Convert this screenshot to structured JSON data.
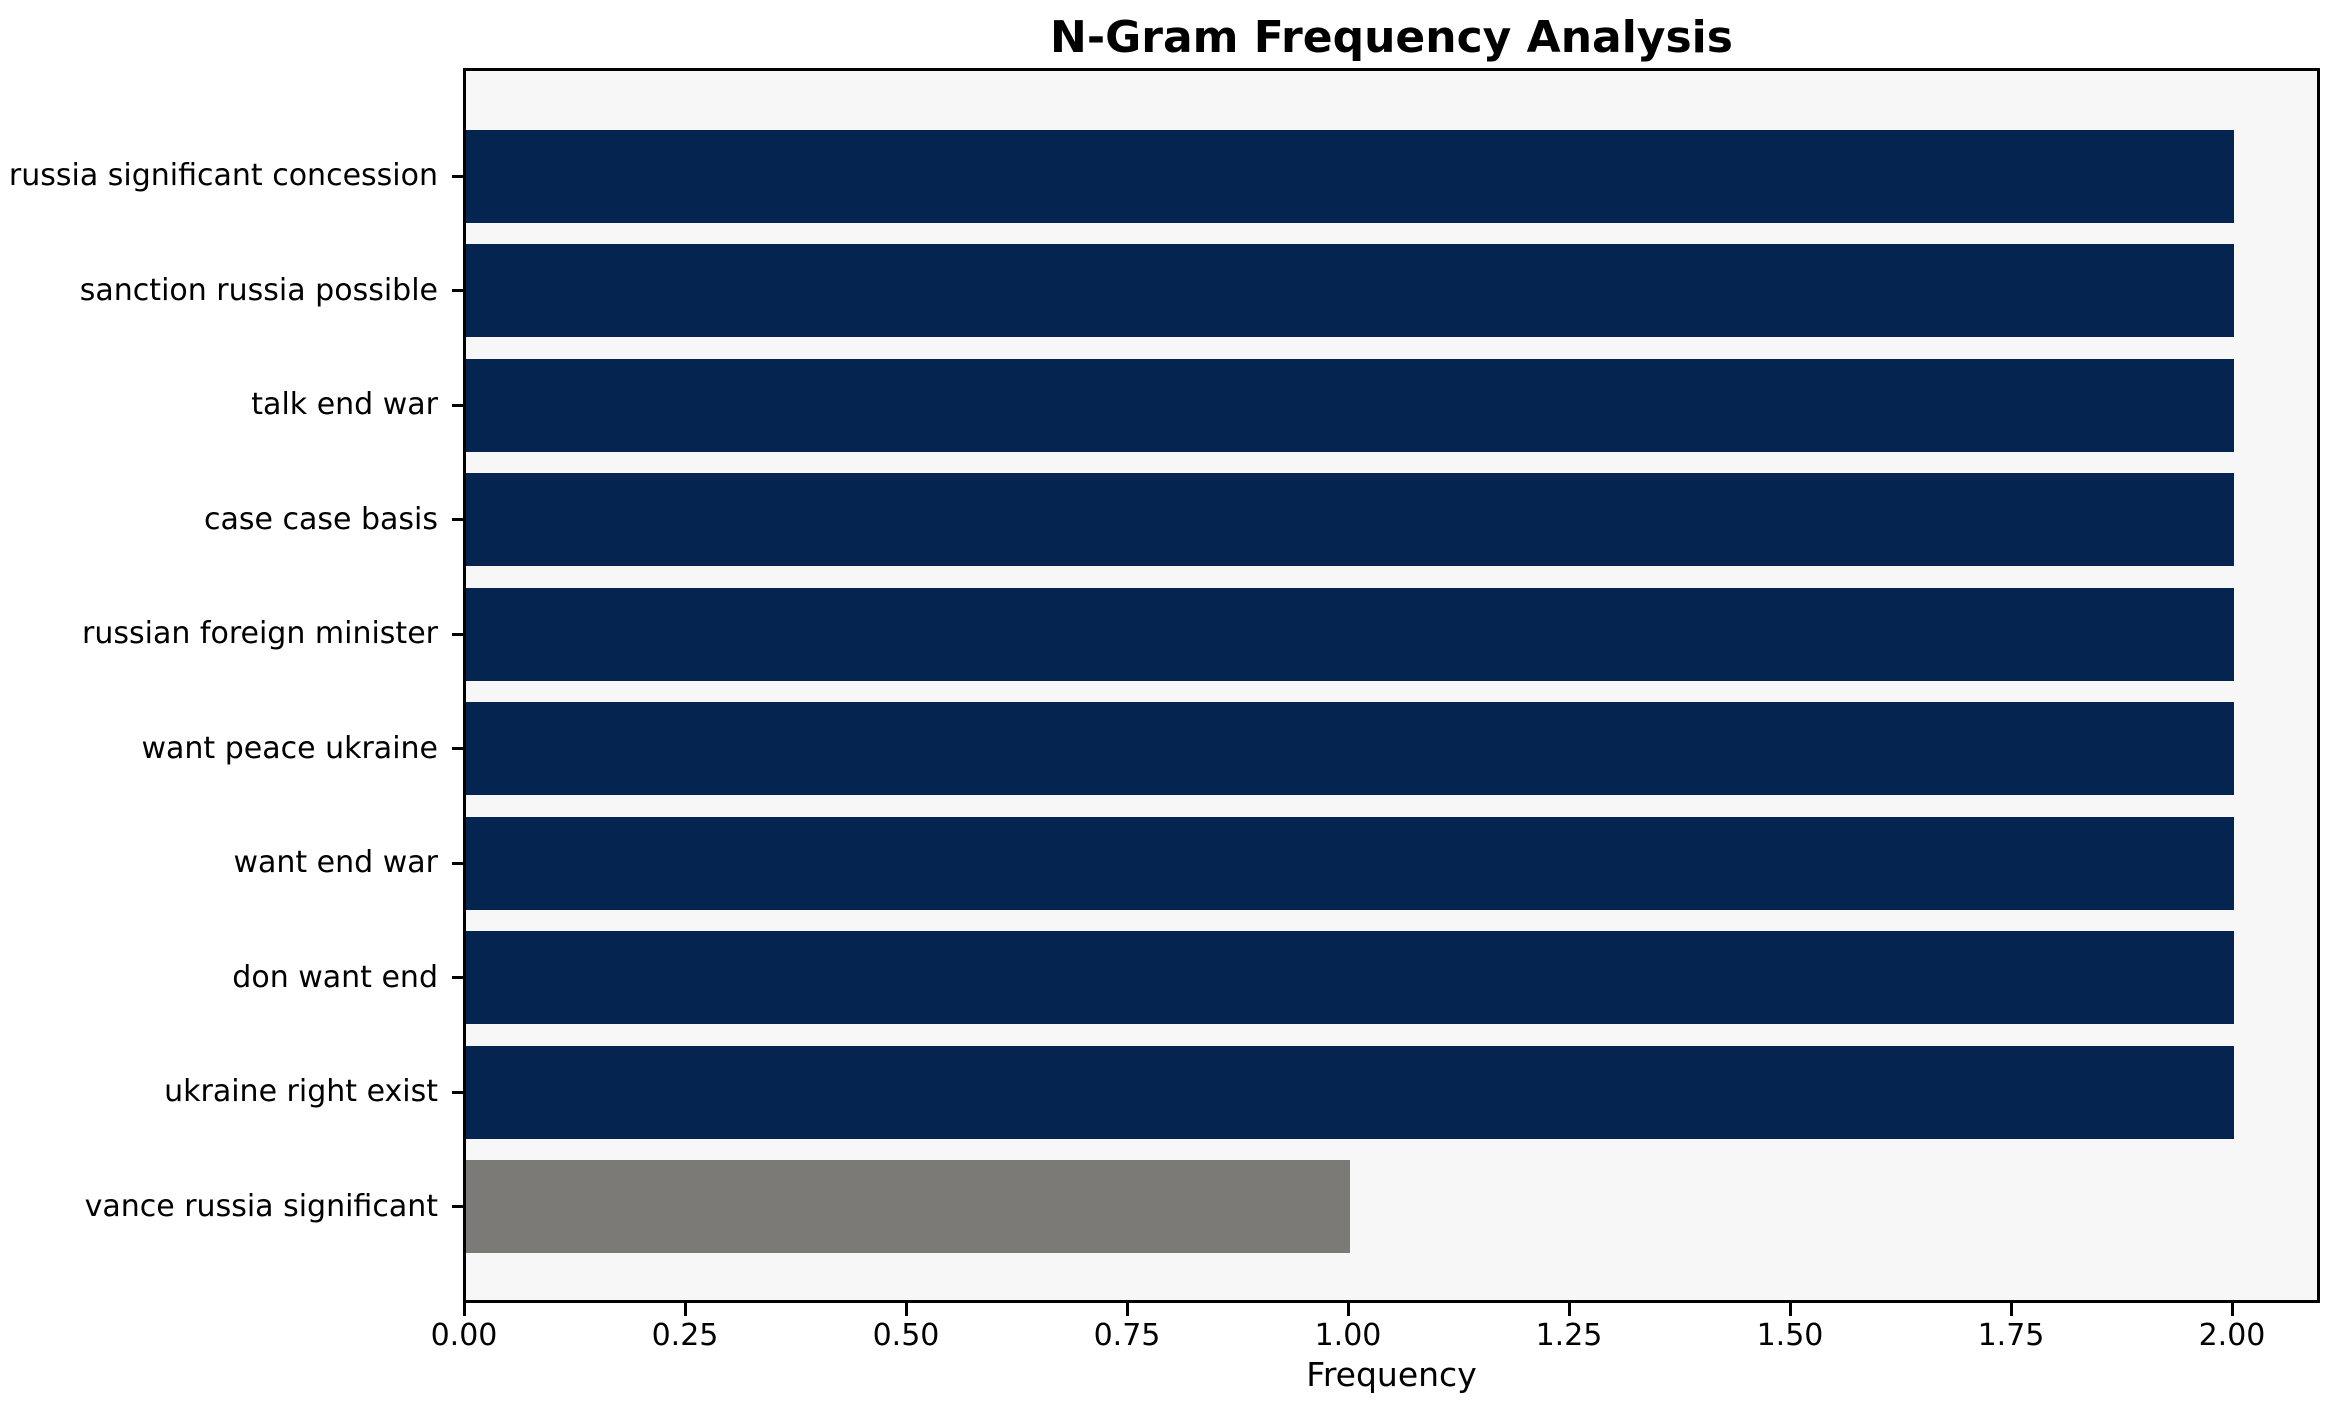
{
  "chart_data": {
    "type": "bar",
    "orientation": "horizontal",
    "title": "N-Gram Frequency Analysis",
    "xlabel": "Frequency",
    "categories": [
      "russia significant concession",
      "sanction russia possible",
      "talk end war",
      "case case basis",
      "russian foreign minister",
      "want peace ukraine",
      "want end war",
      "don want end",
      "ukraine right exist",
      "vance russia significant"
    ],
    "values": [
      2,
      2,
      2,
      2,
      2,
      2,
      2,
      2,
      2,
      1
    ],
    "bar_colors": [
      "#052450",
      "#052450",
      "#052450",
      "#052450",
      "#052450",
      "#052450",
      "#052450",
      "#052450",
      "#052450",
      "#7b7a76"
    ],
    "xlim": [
      0,
      2.1
    ],
    "xticks": [
      0,
      0.25,
      0.5,
      0.75,
      1.0,
      1.25,
      1.5,
      1.75,
      2.0
    ],
    "xtick_labels": [
      "0.00",
      "0.25",
      "0.50",
      "0.75",
      "1.00",
      "1.25",
      "1.50",
      "1.75",
      "2.00"
    ],
    "grid": false,
    "legend_position": "none",
    "colors": {
      "default_bar": "#052450",
      "highlight_bar": "#7b7a76",
      "plot_background": "#f7f7f7",
      "figure_background": "#ffffff",
      "axis": "#000000"
    }
  }
}
